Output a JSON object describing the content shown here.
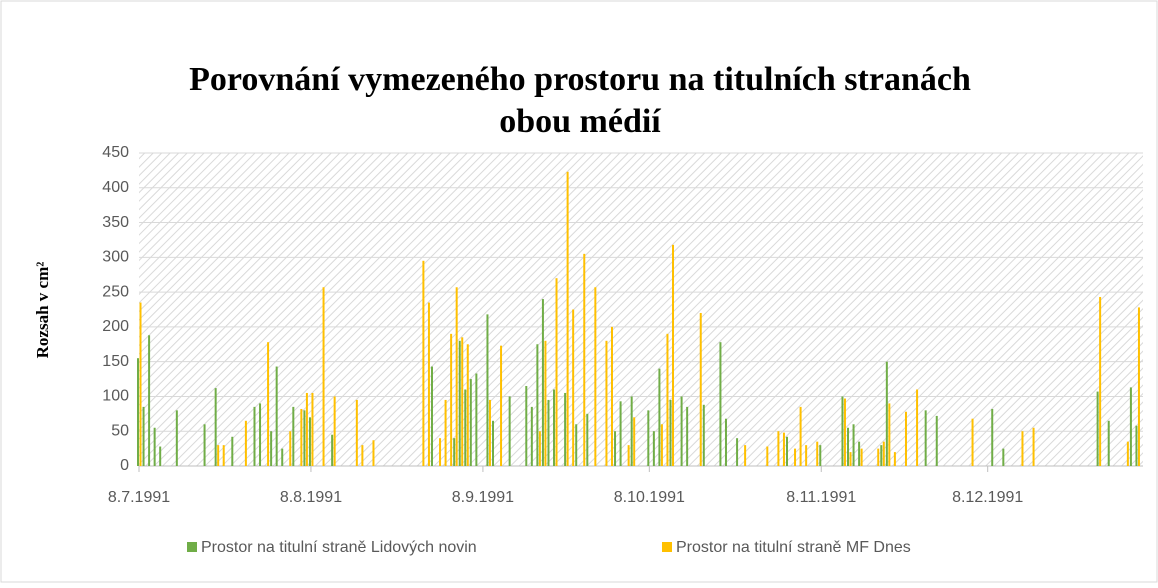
{
  "chart_data": {
    "type": "bar",
    "title": [
      "Porovnání vymezeného prostoru na titulních stranách",
      "obou médií"
    ],
    "y_label": "Rozsah v cm²",
    "xlim": [
      "1991-07-08",
      "1992-01-05"
    ],
    "xticks": [
      {
        "value": "1991-07-08",
        "label": "8.7.1991"
      },
      {
        "value": "1991-08-08",
        "label": "8.8.1991"
      },
      {
        "value": "1991-09-08",
        "label": "8.9.1991"
      },
      {
        "value": "1991-10-08",
        "label": "8.10.1991"
      },
      {
        "value": "1991-11-08",
        "label": "8.11.1991"
      },
      {
        "value": "1991-12-08",
        "label": "8.12.1991"
      }
    ],
    "ylim": [
      0,
      450
    ],
    "yticks": [
      0,
      50,
      100,
      150,
      200,
      250,
      300,
      350,
      400,
      450
    ],
    "grid": true,
    "legend": "bottom",
    "series": [
      {
        "name": "Prostor na titulní straně Lidových novin",
        "color": "#70ad47",
        "x": [
          "1991-07-08",
          "1991-07-09",
          "1991-07-10",
          "1991-07-11",
          "1991-07-12",
          "1991-07-15",
          "1991-07-20",
          "1991-07-22",
          "1991-07-25",
          "1991-07-29",
          "1991-07-30",
          "1991-08-01",
          "1991-08-02",
          "1991-08-03",
          "1991-08-05",
          "1991-08-07",
          "1991-08-08",
          "1991-08-12",
          "1991-08-30",
          "1991-09-03",
          "1991-09-04",
          "1991-09-05",
          "1991-09-06",
          "1991-09-07",
          "1991-09-09",
          "1991-09-10",
          "1991-09-13",
          "1991-09-16",
          "1991-09-17",
          "1991-09-18",
          "1991-09-19",
          "1991-09-20",
          "1991-09-21",
          "1991-09-23",
          "1991-09-25",
          "1991-09-27",
          "1991-10-02",
          "1991-10-03",
          "1991-10-05",
          "1991-10-08",
          "1991-10-09",
          "1991-10-10",
          "1991-10-12",
          "1991-10-14",
          "1991-10-15",
          "1991-10-18",
          "1991-10-21",
          "1991-10-22",
          "1991-10-24",
          "1991-11-02",
          "1991-11-08",
          "1991-11-12",
          "1991-11-13",
          "1991-11-14",
          "1991-11-15",
          "1991-11-19",
          "1991-11-20",
          "1991-11-27",
          "1991-11-29",
          "1991-12-09",
          "1991-12-11",
          "1991-12-28",
          "1991-12-30",
          "1992-01-03",
          "1992-01-04"
        ],
        "values": [
          155,
          85,
          188,
          55,
          28,
          80,
          60,
          112,
          42,
          85,
          90,
          50,
          143,
          25,
          85,
          80,
          70,
          45,
          143,
          40,
          180,
          110,
          125,
          133,
          218,
          65,
          100,
          115,
          85,
          175,
          240,
          95,
          110,
          105,
          60,
          75,
          50,
          93,
          100,
          80,
          50,
          140,
          95,
          100,
          85,
          88,
          178,
          68,
          40,
          42,
          30,
          100,
          55,
          60,
          35,
          30,
          150,
          80,
          72,
          82,
          25,
          107,
          65,
          113,
          58
        ]
      },
      {
        "name": "Prostor na titulní straně MF Dnes",
        "color": "#ffc000",
        "x": [
          "1991-07-08",
          "1991-07-22",
          "1991-07-23",
          "1991-07-27",
          "1991-07-31",
          "1991-08-04",
          "1991-08-06",
          "1991-08-07",
          "1991-08-08",
          "1991-08-10",
          "1991-08-12",
          "1991-08-16",
          "1991-08-17",
          "1991-08-19",
          "1991-08-28",
          "1991-08-29",
          "1991-08-31",
          "1991-09-01",
          "1991-09-02",
          "1991-09-03",
          "1991-09-04",
          "1991-09-05",
          "1991-09-09",
          "1991-09-11",
          "1991-09-18",
          "1991-09-19",
          "1991-09-21",
          "1991-09-23",
          "1991-09-24",
          "1991-09-26",
          "1991-09-28",
          "1991-09-30",
          "1991-10-01",
          "1991-10-04",
          "1991-10-05",
          "1991-10-10",
          "1991-10-11",
          "1991-10-12",
          "1991-10-17",
          "1991-10-25",
          "1991-10-29",
          "1991-10-31",
          "1991-11-01",
          "1991-11-03",
          "1991-11-04",
          "1991-11-05",
          "1991-11-07",
          "1991-11-12",
          "1991-11-13",
          "1991-11-15",
          "1991-11-18",
          "1991-11-19",
          "1991-11-20",
          "1991-11-21",
          "1991-11-23",
          "1991-11-25",
          "1991-12-05",
          "1991-12-14",
          "1991-12-16",
          "1991-12-28",
          "1992-01-02",
          "1992-01-04"
        ],
        "values": [
          235,
          30,
          30,
          65,
          178,
          50,
          82,
          105,
          105,
          257,
          100,
          95,
          30,
          37,
          295,
          235,
          40,
          95,
          190,
          257,
          185,
          175,
          95,
          173,
          50,
          180,
          270,
          423,
          225,
          305,
          257,
          180,
          200,
          30,
          70,
          60,
          190,
          318,
          220,
          30,
          28,
          50,
          48,
          25,
          85,
          30,
          35,
          97,
          20,
          25,
          25,
          35,
          90,
          20,
          78,
          110,
          68,
          50,
          55,
          243,
          35,
          228
        ]
      }
    ]
  }
}
